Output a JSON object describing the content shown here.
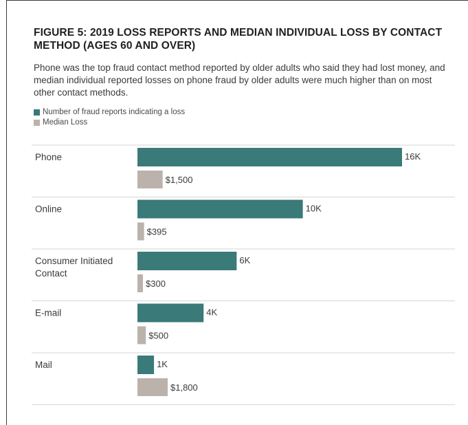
{
  "chart_data": {
    "type": "bar",
    "title": "FIGURE 5: 2019 LOSS REPORTS AND MEDIAN INDIVIDUAL LOSS BY CONTACT METHOD (AGES 60 AND OVER)",
    "subtitle": "Phone was the top fraud contact method reported by older adults who said they had lost money, and median individual reported losses on phone fraud by older adults were much higher than on most other contact methods.",
    "legend_placement": "top-left",
    "grid": false,
    "categories": [
      "Phone",
      "Online",
      "Consumer Initiated Contact",
      "E-mail",
      "Mail"
    ],
    "category_lines": [
      [
        "Phone"
      ],
      [
        "Online"
      ],
      [
        "Consumer Initiated",
        "Contact"
      ],
      [
        "E-mail"
      ],
      [
        "Mail"
      ]
    ],
    "series": [
      {
        "name": "Number of fraud reports indicating a loss",
        "color": "#3a7a78",
        "values": [
          16000,
          10000,
          6000,
          4000,
          1000
        ],
        "labels": [
          "16K",
          "10K",
          "6K",
          "4K",
          "1K"
        ],
        "max": 16000
      },
      {
        "name": "Median Loss",
        "color": "#bcb2ac",
        "values": [
          1500,
          395,
          300,
          500,
          1800
        ],
        "labels": [
          "$1,500",
          "$395",
          "$300",
          "$500",
          "$1,800"
        ],
        "max": 16000
      }
    ]
  }
}
